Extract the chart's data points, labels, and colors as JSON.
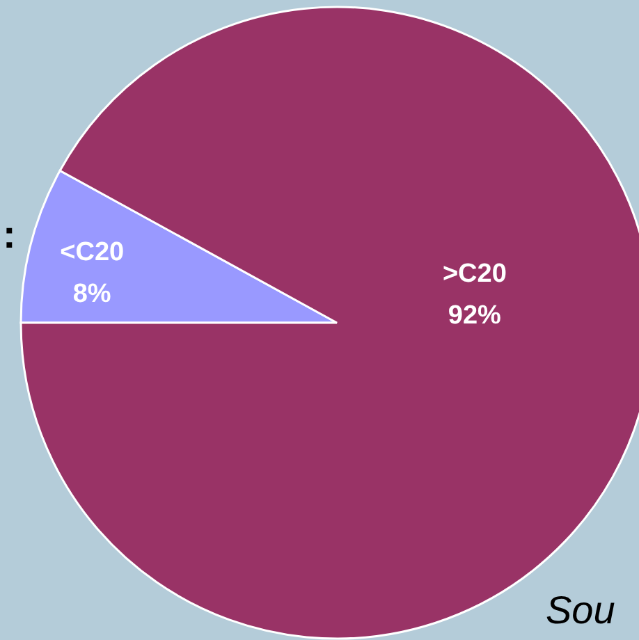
{
  "chart_data": {
    "type": "pie",
    "categories": [
      "<C20",
      ">C20"
    ],
    "values": [
      8,
      92
    ],
    "colors": [
      "#9999ff",
      "#993366"
    ],
    "value_labels": [
      "8%",
      "92%"
    ],
    "annotations": [
      ":",
      "Sou"
    ]
  }
}
